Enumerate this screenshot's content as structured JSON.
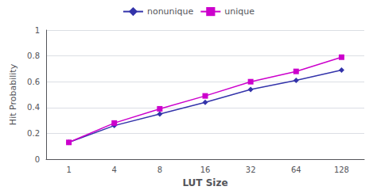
{
  "chart_data": {
    "type": "line",
    "xlabel": "LUT Size",
    "ylabel": "Hit Probability",
    "categories": [
      "1",
      "4",
      "8",
      "16",
      "32",
      "64",
      "128"
    ],
    "series": [
      {
        "name": "nonunique",
        "color": "#3333aa",
        "marker": "diamond",
        "values": [
          0.13,
          0.26,
          0.35,
          0.44,
          0.54,
          0.61,
          0.69
        ]
      },
      {
        "name": "unique",
        "color": "#cc00cc",
        "marker": "square",
        "values": [
          0.13,
          0.28,
          0.39,
          0.49,
          0.6,
          0.68,
          0.79
        ]
      }
    ],
    "ylim": [
      0,
      1.0
    ],
    "yticks": [
      0,
      0.2,
      0.4,
      0.6,
      0.8,
      1
    ],
    "grid": true,
    "legend": "top"
  }
}
